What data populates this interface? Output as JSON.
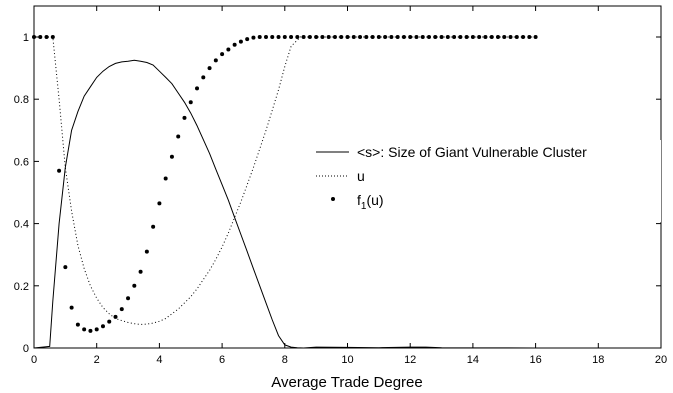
{
  "chart_data": {
    "type": "line",
    "title": "",
    "xlabel": "Average Trade Degree",
    "ylabel": "",
    "xlim": [
      0,
      20
    ],
    "ylim": [
      0,
      1.05
    ],
    "xticks": [
      0,
      2,
      4,
      6,
      8,
      10,
      12,
      14,
      16,
      18,
      20
    ],
    "yticks": [
      0,
      0.2,
      0.4,
      0.6,
      0.8,
      1
    ],
    "grid": false,
    "legend_position": "right-center",
    "series": [
      {
        "name": "<s>: Size of Giant Vulnerable Cluster",
        "style": "solid",
        "color": "#000000",
        "x": [
          0,
          0.5,
          0.6,
          0.8,
          1.0,
          1.2,
          1.4,
          1.6,
          1.8,
          2.0,
          2.2,
          2.4,
          2.6,
          2.8,
          3.0,
          3.2,
          3.4,
          3.6,
          3.8,
          4.0,
          4.2,
          4.4,
          4.6,
          4.8,
          5.0,
          5.2,
          5.4,
          5.6,
          5.8,
          6.0,
          6.2,
          6.4,
          6.6,
          6.8,
          7.0,
          7.2,
          7.4,
          7.6,
          7.8,
          8.0,
          8.2,
          8.4,
          8.6,
          9.0,
          10.0,
          11.0,
          12.0,
          12.5,
          13.0,
          16.0
        ],
        "y": [
          0,
          0.005,
          0.15,
          0.4,
          0.58,
          0.7,
          0.76,
          0.81,
          0.84,
          0.87,
          0.89,
          0.905,
          0.915,
          0.92,
          0.922,
          0.925,
          0.922,
          0.918,
          0.91,
          0.89,
          0.87,
          0.85,
          0.82,
          0.79,
          0.755,
          0.715,
          0.67,
          0.625,
          0.575,
          0.525,
          0.475,
          0.42,
          0.365,
          0.31,
          0.255,
          0.2,
          0.145,
          0.09,
          0.04,
          0.01,
          0.003,
          0.001,
          0,
          0.003,
          0.002,
          0.001,
          0.003,
          0.003,
          0.001,
          0
        ]
      },
      {
        "name": "u",
        "style": "dotted",
        "color": "#000000",
        "x": [
          0,
          0.3,
          0.6,
          0.8,
          1.0,
          1.2,
          1.4,
          1.6,
          1.8,
          2.0,
          2.2,
          2.4,
          2.6,
          2.8,
          3.0,
          3.2,
          3.4,
          3.6,
          3.8,
          4.0,
          4.2,
          4.4,
          4.6,
          4.8,
          5.0,
          5.2,
          5.4,
          5.6,
          5.8,
          6.0,
          6.2,
          6.4,
          6.6,
          6.8,
          7.0,
          7.2,
          7.4,
          7.6,
          7.8,
          8.0,
          8.2,
          8.5,
          9.0,
          12.0,
          16.0
        ],
        "y": [
          1.0,
          1.0,
          1.0,
          0.8,
          0.58,
          0.44,
          0.33,
          0.255,
          0.2,
          0.16,
          0.13,
          0.11,
          0.095,
          0.088,
          0.082,
          0.078,
          0.076,
          0.077,
          0.08,
          0.086,
          0.095,
          0.11,
          0.125,
          0.145,
          0.165,
          0.19,
          0.22,
          0.25,
          0.285,
          0.325,
          0.37,
          0.42,
          0.47,
          0.525,
          0.58,
          0.64,
          0.7,
          0.765,
          0.83,
          0.905,
          0.97,
          1.0,
          1.0,
          1.0,
          1.0
        ]
      },
      {
        "name": "f1(u)",
        "style": "markers",
        "color": "#000000",
        "x": [
          0,
          0.2,
          0.4,
          0.6,
          0.8,
          1.0,
          1.2,
          1.4,
          1.6,
          1.8,
          2.0,
          2.2,
          2.4,
          2.6,
          2.8,
          3.0,
          3.2,
          3.4,
          3.6,
          3.8,
          4.0,
          4.2,
          4.4,
          4.6,
          4.8,
          5.0,
          5.2,
          5.4,
          5.6,
          5.8,
          6.0,
          6.2,
          6.4,
          6.6,
          6.8,
          7.0,
          7.2,
          7.4,
          7.6,
          7.8,
          8.0,
          8.2,
          8.4,
          8.6,
          8.8,
          9.0,
          9.2,
          9.4,
          9.6,
          9.8,
          10.0,
          10.2,
          10.4,
          10.6,
          10.8,
          11.0,
          11.2,
          11.4,
          11.6,
          11.8,
          12.0,
          12.2,
          12.4,
          12.6,
          12.8,
          13.0,
          13.2,
          13.4,
          13.6,
          13.8,
          14.0,
          14.2,
          14.4,
          14.6,
          14.8,
          15.0,
          15.2,
          15.4,
          15.6,
          15.8,
          16.0
        ],
        "y": [
          1.0,
          1.0,
          1.0,
          1.0,
          0.57,
          0.26,
          0.13,
          0.075,
          0.06,
          0.055,
          0.06,
          0.07,
          0.085,
          0.1,
          0.125,
          0.16,
          0.2,
          0.245,
          0.31,
          0.39,
          0.465,
          0.545,
          0.615,
          0.68,
          0.74,
          0.79,
          0.835,
          0.87,
          0.9,
          0.925,
          0.945,
          0.96,
          0.975,
          0.985,
          0.993,
          0.998,
          1.0,
          1.0,
          1.0,
          1.0,
          1.0,
          1.0,
          1.0,
          1.0,
          1.0,
          1.0,
          1.0,
          1.0,
          1.0,
          1.0,
          1.0,
          1.0,
          1.0,
          1.0,
          1.0,
          1.0,
          1.0,
          1.0,
          1.0,
          1.0,
          1.0,
          1.0,
          1.0,
          1.0,
          1.0,
          1.0,
          1.0,
          1.0,
          1.0,
          1.0,
          1.0,
          1.0,
          1.0,
          1.0,
          1.0,
          1.0,
          1.0,
          1.0,
          1.0,
          1.0,
          1.0
        ]
      }
    ]
  },
  "legend": {
    "line1": "<s>: Size of Giant Vulnerable Cluster",
    "line2": "u",
    "line3_main": "f",
    "line3_sub": "1",
    "line3_rest": "(u)"
  }
}
